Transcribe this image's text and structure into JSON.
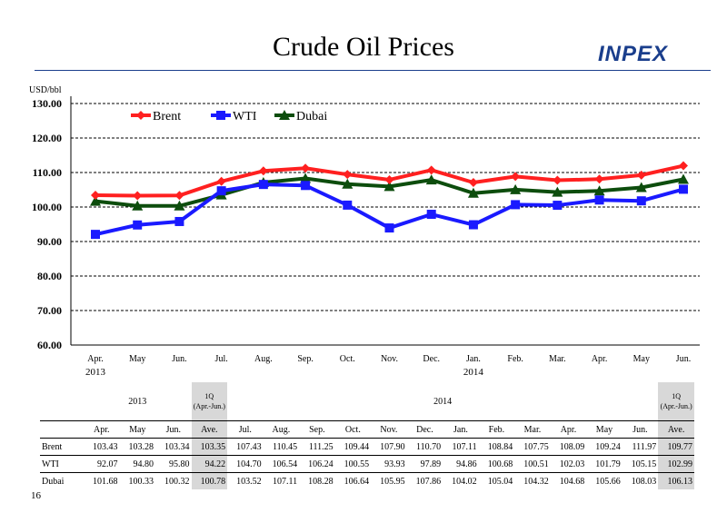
{
  "page": {
    "title": "Crude Oil Prices",
    "logo_text": "INPEX",
    "page_number": "16"
  },
  "chart_data": {
    "type": "line",
    "ylabel": "USD/bbl",
    "ylim": [
      60,
      130
    ],
    "yticks": [
      "60.00",
      "70.00",
      "80.00",
      "90.00",
      "100.00",
      "110.00",
      "120.00",
      "130.00"
    ],
    "grid": true,
    "legend_position": "top-left",
    "categories": [
      "Apr.",
      "May",
      "Jun.",
      "Jul.",
      "Aug.",
      "Sep.",
      "Oct.",
      "Nov.",
      "Dec.",
      "Jan.",
      "Feb.",
      "Mar.",
      "Apr.",
      "May",
      "Jun."
    ],
    "year_labels": [
      {
        "index": 0,
        "text": "2013"
      },
      {
        "index": 9,
        "text": "2014"
      }
    ],
    "series": [
      {
        "name": "Brent",
        "color": "#ff2020",
        "marker": "diamond",
        "values": [
          103.43,
          103.28,
          103.34,
          107.43,
          110.45,
          111.25,
          109.44,
          107.9,
          110.7,
          107.11,
          108.84,
          107.75,
          108.09,
          109.24,
          111.97
        ]
      },
      {
        "name": "WTI",
        "color": "#1a1aff",
        "marker": "square",
        "values": [
          92.07,
          94.8,
          95.8,
          104.7,
          106.54,
          106.24,
          100.55,
          93.93,
          97.89,
          94.86,
          100.68,
          100.51,
          102.03,
          101.79,
          105.15
        ]
      },
      {
        "name": "Dubai",
        "color": "#0d4d0d",
        "marker": "triangle",
        "values": [
          101.68,
          100.33,
          100.32,
          103.52,
          107.11,
          108.28,
          106.64,
          105.95,
          107.86,
          104.02,
          105.04,
          104.32,
          104.68,
          105.66,
          108.03
        ]
      }
    ]
  },
  "table": {
    "year_2013": "2013",
    "year_2014": "2014",
    "q_label": "1Q",
    "q_period": "(Apr.-Jun.)",
    "headers": [
      "Apr.",
      "May",
      "Jun.",
      "Ave.",
      "Jul.",
      "Aug.",
      "Sep.",
      "Oct.",
      "Nov.",
      "Dec.",
      "Jan.",
      "Feb.",
      "Mar.",
      "Apr.",
      "May",
      "Jun.",
      "Ave."
    ],
    "rows": [
      {
        "name": "Brent",
        "values": [
          "103.43",
          "103.28",
          "103.34",
          "103.35",
          "107.43",
          "110.45",
          "111.25",
          "109.44",
          "107.90",
          "110.70",
          "107.11",
          "108.84",
          "107.75",
          "108.09",
          "109.24",
          "111.97",
          "109.77"
        ]
      },
      {
        "name": "WTI",
        "values": [
          "92.07",
          "94.80",
          "95.80",
          "94.22",
          "104.70",
          "106.54",
          "106.24",
          "100.55",
          "93.93",
          "97.89",
          "94.86",
          "100.68",
          "100.51",
          "102.03",
          "101.79",
          "105.15",
          "102.99"
        ]
      },
      {
        "name": "Dubai",
        "values": [
          "101.68",
          "100.33",
          "100.32",
          "100.78",
          "103.52",
          "107.11",
          "108.28",
          "106.64",
          "105.95",
          "107.86",
          "104.02",
          "105.04",
          "104.32",
          "104.68",
          "105.66",
          "108.03",
          "106.13"
        ]
      }
    ]
  }
}
